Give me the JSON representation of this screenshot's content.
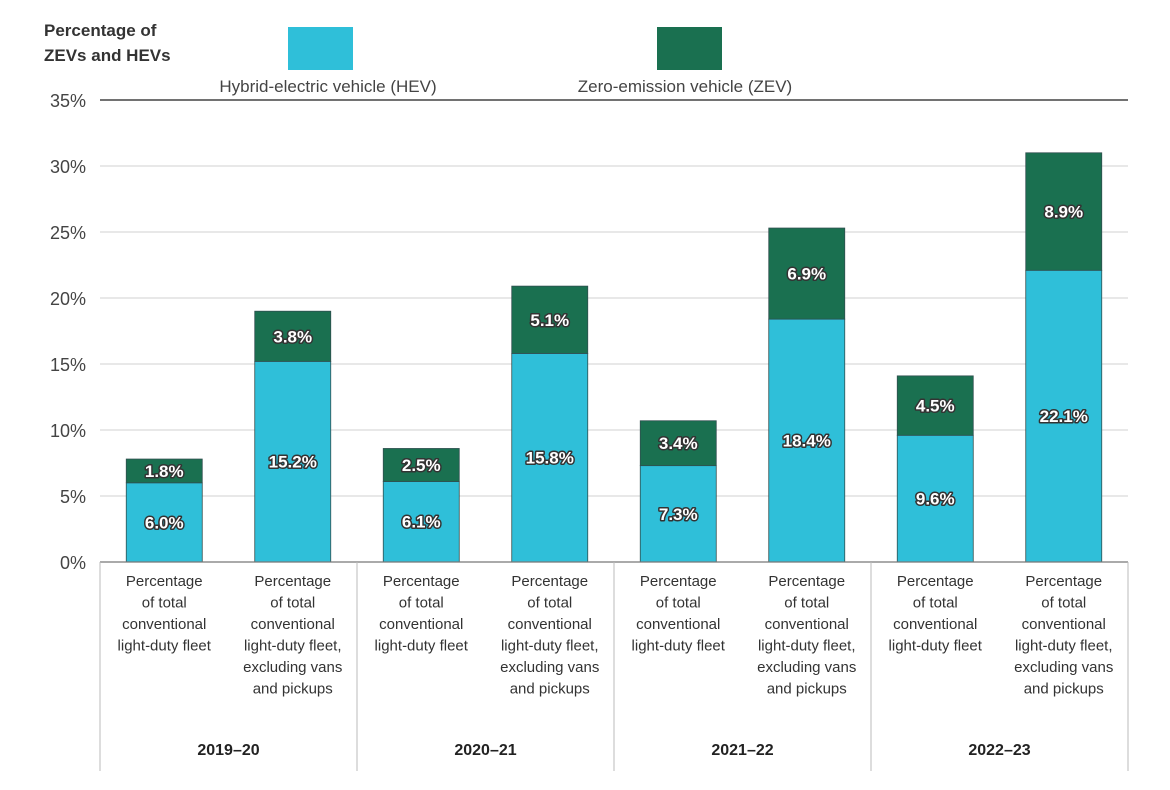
{
  "chart_data": {
    "type": "bar",
    "stacked": true,
    "ylabel": [
      "Percentage of",
      "ZEVs and HEVs"
    ],
    "ylim": [
      0,
      35
    ],
    "yticks": [
      0,
      5,
      10,
      15,
      20,
      25,
      30,
      35
    ],
    "ytick_labels": [
      "0%",
      "5%",
      "10%",
      "15%",
      "20%",
      "25%",
      "30%",
      "35%"
    ],
    "grid": true,
    "groups": [
      "2019–20",
      "2020–21",
      "2021–22",
      "2022–23"
    ],
    "categories": [
      {
        "group": 0,
        "lines": [
          "Percentage",
          "of total",
          "conventional",
          "light-duty fleet"
        ]
      },
      {
        "group": 0,
        "lines": [
          "Percentage",
          "of total",
          "conventional",
          "light-duty fleet,",
          "excluding vans",
          "and pickups"
        ]
      },
      {
        "group": 1,
        "lines": [
          "Percentage",
          "of total",
          "conventional",
          "light-duty fleet"
        ]
      },
      {
        "group": 1,
        "lines": [
          "Percentage",
          "of total",
          "conventional",
          "light-duty fleet,",
          "excluding vans",
          "and pickups"
        ]
      },
      {
        "group": 2,
        "lines": [
          "Percentage",
          "of total",
          "conventional",
          "light-duty fleet"
        ]
      },
      {
        "group": 2,
        "lines": [
          "Percentage",
          "of total",
          "conventional",
          "light-duty fleet,",
          "excluding vans",
          "and pickups"
        ]
      },
      {
        "group": 3,
        "lines": [
          "Percentage",
          "of total",
          "conventional",
          "light-duty fleet"
        ]
      },
      {
        "group": 3,
        "lines": [
          "Percentage",
          "of total",
          "conventional",
          "light-duty fleet,",
          "excluding vans",
          "and pickups"
        ]
      }
    ],
    "series": [
      {
        "name": "Hybrid-electric vehicle (HEV)",
        "color": "#2fbfd9",
        "values": [
          6.0,
          15.2,
          6.1,
          15.8,
          7.3,
          18.4,
          9.6,
          22.1
        ],
        "labels": [
          "6.0%",
          "15.2%",
          "6.1%",
          "15.8%",
          "7.3%",
          "18.4%",
          "9.6%",
          "22.1%"
        ]
      },
      {
        "name": "Zero-emission vehicle (ZEV)",
        "color": "#1a7050",
        "values": [
          1.8,
          3.8,
          2.5,
          5.1,
          3.4,
          6.9,
          4.5,
          8.9
        ],
        "labels": [
          "1.8%",
          "3.8%",
          "2.5%",
          "5.1%",
          "3.4%",
          "6.9%",
          "4.5%",
          "8.9%"
        ]
      }
    ],
    "legend_position": "top"
  }
}
